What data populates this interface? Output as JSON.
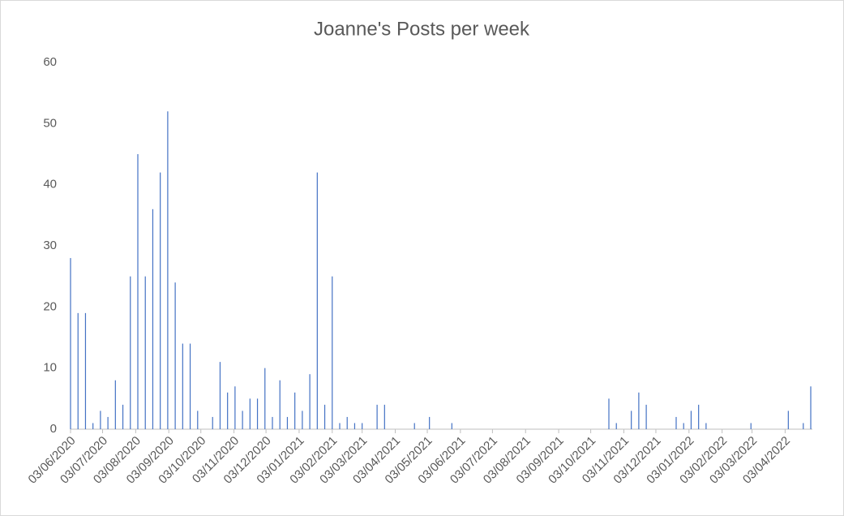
{
  "chart_data": {
    "type": "bar",
    "title": "Joanne's Posts per week",
    "x": [
      "03/06/2020",
      "10/06/2020",
      "17/06/2020",
      "24/06/2020",
      "01/07/2020",
      "08/07/2020",
      "15/07/2020",
      "22/07/2020",
      "29/07/2020",
      "05/08/2020",
      "12/08/2020",
      "19/08/2020",
      "26/08/2020",
      "02/09/2020",
      "09/09/2020",
      "16/09/2020",
      "23/09/2020",
      "30/09/2020",
      "07/10/2020",
      "14/10/2020",
      "21/10/2020",
      "28/10/2020",
      "04/11/2020",
      "11/11/2020",
      "18/11/2020",
      "25/11/2020",
      "02/12/2020",
      "09/12/2020",
      "16/12/2020",
      "23/12/2020",
      "30/12/2020",
      "06/01/2021",
      "13/01/2021",
      "20/01/2021",
      "27/01/2021",
      "03/02/2021",
      "10/02/2021",
      "17/02/2021",
      "24/02/2021",
      "03/03/2021",
      "10/03/2021",
      "17/03/2021",
      "24/03/2021",
      "31/03/2021",
      "07/04/2021",
      "14/04/2021",
      "21/04/2021",
      "28/04/2021",
      "05/05/2021",
      "12/05/2021",
      "19/05/2021",
      "26/05/2021",
      "02/06/2021",
      "09/06/2021",
      "16/06/2021",
      "23/06/2021",
      "30/06/2021",
      "07/07/2021",
      "14/07/2021",
      "21/07/2021",
      "28/07/2021",
      "04/08/2021",
      "11/08/2021",
      "18/08/2021",
      "25/08/2021",
      "01/09/2021",
      "08/09/2021",
      "15/09/2021",
      "22/09/2021",
      "29/09/2021",
      "06/10/2021",
      "13/10/2021",
      "20/10/2021",
      "27/10/2021",
      "03/11/2021",
      "10/11/2021",
      "17/11/2021",
      "24/11/2021",
      "01/12/2021",
      "08/12/2021",
      "15/12/2021",
      "22/12/2021",
      "29/12/2021",
      "05/01/2022",
      "12/01/2022",
      "19/01/2022",
      "26/01/2022",
      "02/02/2022",
      "09/02/2022",
      "16/02/2022",
      "23/02/2022",
      "02/03/2022",
      "09/03/2022",
      "16/03/2022",
      "23/03/2022",
      "30/03/2022",
      "06/04/2022",
      "13/04/2022",
      "20/04/2022",
      "27/04/2022"
    ],
    "values": [
      28,
      19,
      19,
      1,
      3,
      2,
      8,
      4,
      25,
      45,
      25,
      36,
      42,
      52,
      24,
      14,
      14,
      3,
      0,
      2,
      11,
      6,
      7,
      3,
      5,
      5,
      10,
      2,
      8,
      2,
      6,
      3,
      9,
      42,
      4,
      25,
      1,
      2,
      1,
      1,
      0,
      4,
      4,
      0,
      0,
      0,
      1,
      0,
      2,
      0,
      0,
      1,
      0,
      0,
      0,
      0,
      0,
      0,
      0,
      0,
      0,
      0,
      0,
      0,
      0,
      0,
      0,
      0,
      0,
      0,
      0,
      0,
      5,
      1,
      0,
      3,
      6,
      4,
      0,
      0,
      0,
      2,
      1,
      3,
      4,
      1,
      0,
      0,
      0,
      0,
      0,
      1,
      0,
      0,
      0,
      0,
      3,
      0,
      1,
      7
    ],
    "color": "#4472c4",
    "xlim": [
      "03/06/2020",
      "27/04/2022"
    ],
    "xticks": [
      "03/06/2020",
      "03/07/2020",
      "03/08/2020",
      "03/09/2020",
      "03/10/2020",
      "03/11/2020",
      "03/12/2020",
      "03/01/2021",
      "03/02/2021",
      "03/03/2021",
      "03/04/2021",
      "03/05/2021",
      "03/06/2021",
      "03/07/2021",
      "03/08/2021",
      "03/09/2021",
      "03/10/2021",
      "03/11/2021",
      "03/12/2021",
      "03/01/2022",
      "03/02/2022",
      "03/03/2022",
      "03/04/2022"
    ],
    "ylim": [
      0,
      60
    ],
    "yticks": [
      0,
      10,
      20,
      30,
      40,
      50,
      60
    ],
    "grid": false
  }
}
